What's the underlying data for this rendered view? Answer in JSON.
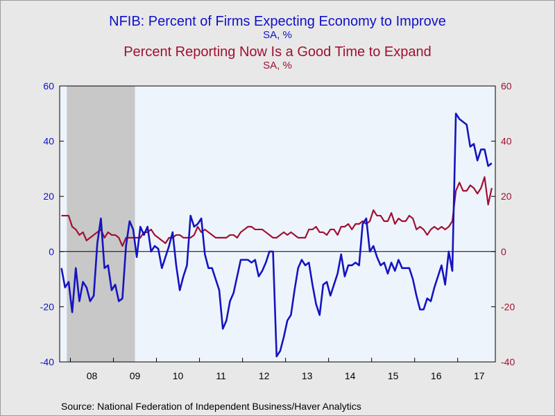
{
  "titles": {
    "title1": "NFIB: Percent of Firms Expecting Economy to Improve",
    "subtitle1": "SA, %",
    "title2": "Percent Reporting Now Is a Good Time to Expand",
    "subtitle2": "SA, %"
  },
  "source": "Source:  National Federation of Independent Business/Haver Analytics",
  "colors": {
    "series1": "#1414c0",
    "series2": "#a01030",
    "plot_bg": "#eef4fc",
    "recession": "#c8c8c8",
    "left_axis": "#1010c8",
    "right_axis": "#a01030"
  },
  "chart_data": {
    "type": "line",
    "x_start": "2007-10",
    "frequency": "monthly",
    "ylim": [
      -40,
      60
    ],
    "y_ticks": [
      -40,
      -20,
      0,
      20,
      40,
      60
    ],
    "y_tick_labels": [
      "-40",
      "-20",
      "0",
      "20",
      "40",
      "60"
    ],
    "y2lim": [
      -40,
      60
    ],
    "y2_ticks": [
      -40,
      -20,
      0,
      20,
      40,
      60
    ],
    "y2_tick_labels": [
      "-40",
      "-20",
      "0",
      "20",
      "40",
      "60"
    ],
    "x_tick_labels": [
      "08",
      "09",
      "10",
      "11",
      "12",
      "13",
      "14",
      "15",
      "16",
      "17"
    ],
    "recession_shading": {
      "start": "2007-12",
      "end": "2009-06"
    },
    "zero_line": true,
    "grid": false,
    "series": [
      {
        "name": "Percent of Firms Expecting Economy to Improve",
        "axis": "left",
        "values": [
          -6,
          -13,
          -11,
          -22,
          -6,
          -18,
          -11,
          -13,
          -18,
          -16,
          3,
          12,
          -6,
          -5,
          -14,
          -12,
          -18,
          -17,
          2,
          11,
          8,
          -2,
          9,
          6,
          9,
          0,
          2,
          1,
          -6,
          -2,
          2,
          7,
          -5,
          -14,
          -9,
          -5,
          13,
          9,
          10,
          12,
          -1,
          -6,
          -6,
          -10,
          -14,
          -28,
          -25,
          -18,
          -15,
          -9,
          -3,
          -3,
          -3,
          -4,
          -3,
          -9,
          -7,
          -4,
          0,
          0,
          -38,
          -36,
          -31,
          -25,
          -23,
          -14,
          -6,
          -3,
          -5,
          -4,
          -12,
          -19,
          -23,
          -12,
          -11,
          -16,
          -12,
          -8,
          -1,
          -9,
          -5,
          -5,
          -4,
          -5,
          10,
          12,
          0,
          2,
          -2,
          -5,
          -4,
          -8,
          -4,
          -7,
          -3,
          -6,
          -6,
          -6,
          -10,
          -16,
          -21,
          -21,
          -17,
          -18,
          -13,
          -9,
          -5,
          -12,
          0,
          -7,
          50,
          48,
          47,
          46,
          38,
          39,
          33,
          37,
          37,
          31,
          32
        ],
        "color": "#1414c0"
      },
      {
        "name": "Percent Reporting Now Is a Good Time to Expand",
        "axis": "right",
        "values": [
          13,
          13,
          13,
          9,
          8,
          6,
          7,
          4,
          5,
          6,
          7,
          8,
          5,
          7,
          6,
          6,
          5,
          2,
          5,
          5,
          5,
          5,
          5,
          7,
          7,
          8,
          6,
          5,
          4,
          3,
          5,
          5,
          6,
          6,
          5,
          5,
          5,
          6,
          9,
          7,
          8,
          7,
          6,
          5,
          5,
          5,
          5,
          6,
          6,
          5,
          7,
          8,
          9,
          9,
          8,
          8,
          8,
          7,
          6,
          5,
          5,
          6,
          7,
          6,
          7,
          6,
          5,
          5,
          5,
          8,
          8,
          9,
          7,
          7,
          6,
          8,
          8,
          6,
          9,
          9,
          10,
          8,
          10,
          10,
          11,
          10,
          11,
          15,
          13,
          13,
          11,
          11,
          14,
          10,
          12,
          11,
          11,
          13,
          12,
          8,
          9,
          8,
          6,
          8,
          9,
          8,
          9,
          8,
          9,
          11,
          22,
          25,
          22,
          22,
          24,
          23,
          21,
          23,
          27,
          17,
          23
        ],
        "color": "#a01030"
      }
    ]
  }
}
